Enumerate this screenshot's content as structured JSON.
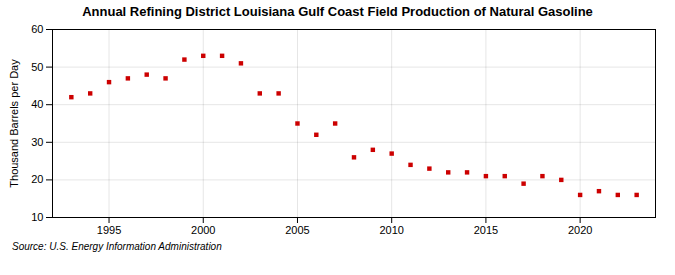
{
  "chart_data": {
    "type": "scatter",
    "title": "Annual Refining District Louisiana Gulf Coast Field Production of Natural Gasoline",
    "ylabel": "Thousand Barrels per Day",
    "source": "Source: U.S. Energy Information Administration",
    "x": [
      1993,
      1994,
      1995,
      1996,
      1997,
      1998,
      1999,
      2000,
      2001,
      2002,
      2003,
      2004,
      2005,
      2006,
      2007,
      2008,
      2009,
      2010,
      2011,
      2012,
      2013,
      2014,
      2015,
      2016,
      2017,
      2018,
      2019,
      2020,
      2021,
      2022,
      2023
    ],
    "values": [
      42,
      43,
      46,
      47,
      48,
      47,
      52,
      53,
      53,
      51,
      43,
      43,
      35,
      32,
      35,
      26,
      28,
      27,
      24,
      23,
      22,
      22,
      21,
      21,
      19,
      21,
      20,
      16,
      17,
      16,
      16
    ],
    "color": "#cc0000",
    "marker": "square",
    "xlim": [
      1992,
      2024
    ],
    "ylim": [
      10,
      60
    ],
    "xticks": [
      1995,
      2000,
      2005,
      2010,
      2015,
      2020
    ],
    "yticks": [
      10,
      20,
      30,
      40,
      50,
      60
    ],
    "grid": true
  }
}
